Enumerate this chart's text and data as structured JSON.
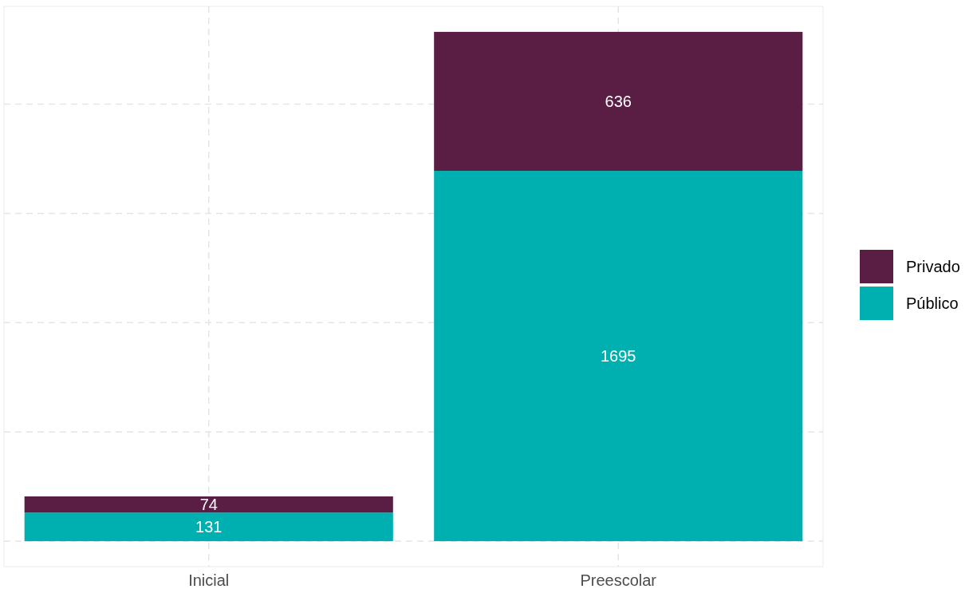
{
  "chart_data": {
    "type": "bar",
    "stacked": true,
    "categories": [
      "Inicial",
      "Preescolar"
    ],
    "series": [
      {
        "name": "Público",
        "color": "#00b0b0",
        "values": [
          131,
          1695
        ]
      },
      {
        "name": "Privado",
        "color": "#5a1e45",
        "values": [
          74,
          636
        ]
      }
    ],
    "ylim": [
      -116.55,
      2447.55
    ],
    "yticks": [
      {
        "value": 0,
        "label": null
      },
      {
        "value": 500,
        "label": null
      },
      {
        "value": 1000,
        "label": null
      },
      {
        "value": 1500,
        "label": null
      },
      {
        "value": 2000,
        "label": null
      }
    ],
    "tick_labels": "x",
    "grid": true,
    "line_style": "dashed",
    "legend": "right",
    "data_labels": true
  }
}
